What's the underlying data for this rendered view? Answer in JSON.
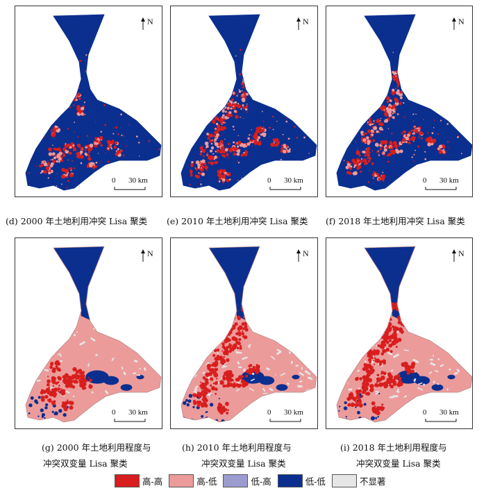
{
  "panels": [
    {
      "id": "d",
      "style": "conflict",
      "north": "N",
      "scale": {
        "zero": "0",
        "dist": "30 km"
      }
    },
    {
      "id": "e",
      "style": "conflict",
      "north": "N",
      "scale": {
        "zero": "0",
        "dist": "30 km"
      }
    },
    {
      "id": "f",
      "style": "conflict",
      "north": "N",
      "scale": {
        "zero": "0",
        "dist": "30 km"
      }
    },
    {
      "id": "g",
      "style": "bivariate",
      "north": "N",
      "scale": {
        "zero": "0",
        "dist": "30 km"
      }
    },
    {
      "id": "h",
      "style": "bivariate",
      "north": "N",
      "scale": {
        "zero": "0",
        "dist": "30 km"
      }
    },
    {
      "id": "i",
      "style": "bivariate",
      "north": "N",
      "scale": {
        "zero": "0",
        "dist": "30 km"
      }
    }
  ],
  "captions": {
    "d": "(d) 2000 年土地利用冲突 Lisa 聚类",
    "e": "(e) 2010 年土地利用冲突 Lisa 聚类",
    "f": "(f) 2018 年土地利用冲突 Lisa 聚类",
    "g": [
      "(g) 2000 年土地利用程度与",
      "冲突双变量 Lisa 聚类"
    ],
    "h": [
      "(h) 2010 年土地利用程度与",
      "冲突双变量 Lisa 聚类"
    ],
    "i": [
      "(i) 2018 年土地利用程度与",
      "冲突双变量 Lisa 聚类"
    ]
  },
  "legend": [
    {
      "label": "高-高",
      "color": "#d81e1e"
    },
    {
      "label": "高-低",
      "color": "#ec9b9b"
    },
    {
      "label": "低-高",
      "color": "#9b9bd0"
    },
    {
      "label": "低-低",
      "color": "#0b2f8f"
    },
    {
      "label": "不显著",
      "color": "#e6e6e6"
    }
  ],
  "colors": {
    "dark_blue": "#0b2f8f",
    "red": "#d81e1e",
    "pink": "#ec9b9b",
    "gray": "#e6e6e6"
  }
}
